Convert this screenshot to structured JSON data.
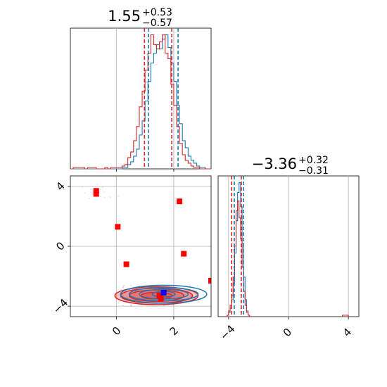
{
  "chart_data": [
    {
      "type": "histogram",
      "title": "1.55",
      "title_upper": "+0.53",
      "title_lower": "−0.57",
      "xlim": [
        -1.6,
        3.3
      ],
      "grid": true,
      "series": [
        {
          "name": "",
          "color": "#1f77b4",
          "bins": [
            -1.6,
            -1.5,
            -1.4,
            -1.3,
            -1.2,
            -1.1,
            -1.0,
            -0.9,
            -0.8,
            -0.7,
            -0.6,
            -0.5,
            -0.4,
            -0.3,
            -0.2,
            -0.1,
            0.0,
            0.1,
            0.2,
            0.3,
            0.4,
            0.5,
            0.6,
            0.7,
            0.8,
            0.9,
            1.0,
            1.1,
            1.2,
            1.3,
            1.4,
            1.5,
            1.6,
            1.7,
            1.8,
            1.9,
            2.0,
            2.1,
            2.2,
            2.3,
            2.4,
            2.5,
            2.6,
            2.7,
            2.8,
            2.9,
            3.0,
            3.1,
            3.2
          ],
          "values": [
            0,
            0,
            0,
            0,
            0,
            0,
            0,
            0,
            0,
            0,
            0,
            0,
            0,
            0,
            0,
            0,
            0,
            0,
            1,
            1,
            3,
            5,
            9,
            14,
            24,
            34,
            48,
            62,
            75,
            82,
            88,
            85,
            92,
            95,
            86,
            75,
            62,
            45,
            32,
            20,
            15,
            9,
            6,
            4,
            2,
            1,
            1,
            0,
            0
          ]
        },
        {
          "name": "",
          "color": "#d62728",
          "bins": [
            -1.6,
            -1.5,
            -1.4,
            -1.3,
            -1.2,
            -1.1,
            -1.0,
            -0.9,
            -0.8,
            -0.7,
            -0.6,
            -0.5,
            -0.4,
            -0.3,
            -0.2,
            -0.1,
            0.0,
            0.1,
            0.2,
            0.3,
            0.4,
            0.5,
            0.6,
            0.7,
            0.8,
            0.9,
            1.0,
            1.1,
            1.2,
            1.3,
            1.4,
            1.5,
            1.6,
            1.7,
            1.8,
            1.9,
            2.0,
            2.1,
            2.2,
            2.3,
            2.4,
            2.5,
            2.6,
            2.7,
            2.8,
            2.9,
            3.0,
            3.1,
            3.2
          ],
          "values": [
            0,
            1,
            1,
            1,
            1,
            0,
            1,
            1,
            1,
            0,
            0,
            0,
            1,
            0,
            1,
            1,
            1,
            1,
            2,
            3,
            8,
            12,
            20,
            30,
            44,
            55,
            70,
            82,
            95,
            88,
            85,
            90,
            95,
            82,
            78,
            60,
            45,
            30,
            18,
            10,
            6,
            4,
            2,
            1,
            1,
            0,
            0,
            0,
            0
          ]
        }
      ],
      "quantile_lines": [
        {
          "x": 0.98,
          "color": "#d62728"
        },
        {
          "x": 1.12,
          "color": "#1f77b4"
        },
        {
          "x": 1.93,
          "color": "#d62728"
        },
        {
          "x": 2.15,
          "color": "#1f77b4"
        }
      ]
    },
    {
      "type": "contour-scatter",
      "xlim": [
        -1.6,
        3.3
      ],
      "ylim": [
        -4.7,
        4.7
      ],
      "xticks": [
        "0",
        "2"
      ],
      "yticks": [
        "−4",
        "0",
        "4"
      ],
      "grid": true,
      "contours": [
        {
          "name": "",
          "color": "#d62728",
          "fill": true,
          "cx": 1.4,
          "cy": -3.3,
          "rx": [
            0.55,
            0.95,
            1.25,
            1.45
          ],
          "ry": [
            0.22,
            0.38,
            0.5,
            0.6
          ]
        },
        {
          "name": "",
          "color": "#1f77b4",
          "fill": false,
          "cx": 1.65,
          "cy": -3.2,
          "rx": [
            0.4,
            0.85,
            1.2,
            1.5
          ],
          "ry": [
            0.18,
            0.32,
            0.45,
            0.6
          ]
        }
      ],
      "red_markers": [
        [
          -0.7,
          3.7
        ],
        [
          -0.7,
          3.5
        ],
        [
          0.05,
          1.3
        ],
        [
          2.2,
          3.0
        ],
        [
          2.35,
          -0.5
        ],
        [
          0.35,
          -1.2
        ],
        [
          3.3,
          -2.3
        ],
        [
          1.5,
          -3.3
        ],
        [
          1.55,
          -3.5
        ]
      ],
      "blue_marker": [
        1.65,
        -3.1
      ]
    },
    {
      "type": "histogram",
      "title": "−3.36",
      "title_upper": "+0.32",
      "title_lower": "−0.31",
      "xlim": [
        -4.7,
        4.7
      ],
      "xticks": [
        "−4",
        "0",
        "4"
      ],
      "grid": true,
      "series": [
        {
          "name": "",
          "color": "#1f77b4",
          "bins": [
            -4.1,
            -4.0,
            -3.9,
            -3.8,
            -3.7,
            -3.6,
            -3.5,
            -3.4,
            -3.3,
            -3.2,
            -3.1,
            -3.0,
            -2.9,
            -2.8,
            -2.7
          ],
          "values": [
            1,
            3,
            6,
            12,
            24,
            45,
            68,
            88,
            95,
            78,
            52,
            28,
            12,
            4,
            1
          ]
        },
        {
          "name": "",
          "color": "#d62728",
          "bins": [
            -4.1,
            -4.0,
            -3.9,
            -3.8,
            -3.7,
            -3.6,
            -3.5,
            -3.4,
            -3.3,
            -3.2,
            -3.1,
            -3.0,
            -2.9,
            -2.8,
            -2.7,
            3.6,
            3.7,
            3.8,
            3.9
          ],
          "values": [
            1,
            4,
            8,
            15,
            28,
            50,
            75,
            82,
            70,
            55,
            35,
            18,
            8,
            3,
            1,
            1,
            1,
            1,
            1
          ]
        }
      ],
      "quantile_lines": [
        {
          "x": -3.8,
          "color": "#d62728"
        },
        {
          "x": -3.62,
          "color": "#1f77b4"
        },
        {
          "x": -3.15,
          "color": "#d62728"
        },
        {
          "x": -3.0,
          "color": "#1f77b4"
        }
      ]
    }
  ]
}
